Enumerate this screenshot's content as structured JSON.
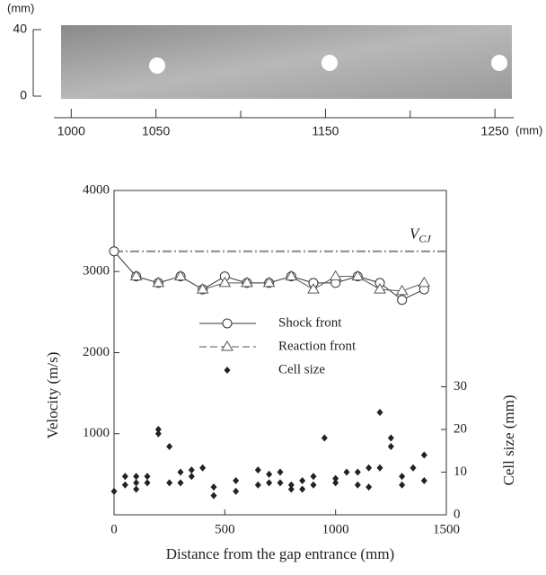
{
  "photo": {
    "y_unit": "(mm)",
    "x_unit": "(mm)",
    "ylim": [
      0,
      40
    ],
    "yticks": [
      40,
      0
    ],
    "xlim": [
      994,
      1260
    ],
    "xticks": [
      1000,
      1050,
      1150,
      1250
    ],
    "xminor": [
      1100,
      1200
    ]
  },
  "chart_data": {
    "type": "line",
    "xlabel": "Distance from the gap entrance (mm)",
    "ylabel": "Velocity (m/s)",
    "y2label": "Cell size (mm)",
    "xlim": [
      0,
      1500
    ],
    "xticks": [
      0,
      500,
      1000,
      1500
    ],
    "ylim": [
      0,
      4000
    ],
    "yticks": [
      1000,
      2000,
      3000,
      4000
    ],
    "y2lim": [
      0,
      76
    ],
    "y2ticks": [
      0,
      10,
      20,
      30
    ],
    "reference": {
      "label": "V",
      "label_sub": "CJ",
      "value": 3250,
      "color": "#888888"
    },
    "series": [
      {
        "name": "Shock front",
        "marker": "circle",
        "color": "#333333",
        "x": [
          0,
          100,
          200,
          300,
          400,
          500,
          600,
          700,
          800,
          900,
          1000,
          1100,
          1200,
          1300,
          1400
        ],
        "values": [
          3250,
          2940,
          2860,
          2940,
          2780,
          2940,
          2860,
          2860,
          2940,
          2860,
          2860,
          2940,
          2860,
          2650,
          2780
        ]
      },
      {
        "name": "Reaction front",
        "marker": "triangle",
        "color": "#555555",
        "x": [
          100,
          200,
          300,
          400,
          500,
          600,
          700,
          800,
          900,
          1000,
          1100,
          1200,
          1300,
          1400
        ],
        "values": [
          2940,
          2860,
          2940,
          2780,
          2860,
          2860,
          2860,
          2940,
          2780,
          2940,
          2940,
          2780,
          2760,
          2860
        ]
      },
      {
        "name": "Cell size",
        "marker": "diamond",
        "color": "#222222",
        "axis": "y2",
        "x": [
          0,
          50,
          50,
          100,
          100,
          100,
          150,
          150,
          200,
          200,
          250,
          250,
          300,
          300,
          350,
          350,
          400,
          450,
          450,
          550,
          550,
          650,
          650,
          700,
          700,
          750,
          750,
          800,
          800,
          850,
          850,
          900,
          900,
          950,
          1000,
          1000,
          1050,
          1100,
          1100,
          1150,
          1150,
          1200,
          1200,
          1250,
          1250,
          1300,
          1300,
          1350,
          1400,
          1400
        ],
        "values": [
          5.5,
          9,
          7,
          9,
          7.5,
          6,
          9,
          7.5,
          20,
          19,
          16,
          7.5,
          10,
          7.5,
          10.5,
          9,
          11,
          6.5,
          4.5,
          8,
          5.5,
          10.5,
          7,
          9.5,
          7.5,
          10,
          7.5,
          7,
          6,
          8,
          6,
          9,
          7,
          18,
          8.5,
          7.5,
          10,
          10,
          7,
          11,
          6.5,
          24,
          11,
          18,
          16,
          9,
          7,
          11,
          14,
          8
        ]
      }
    ],
    "legend": "center"
  }
}
